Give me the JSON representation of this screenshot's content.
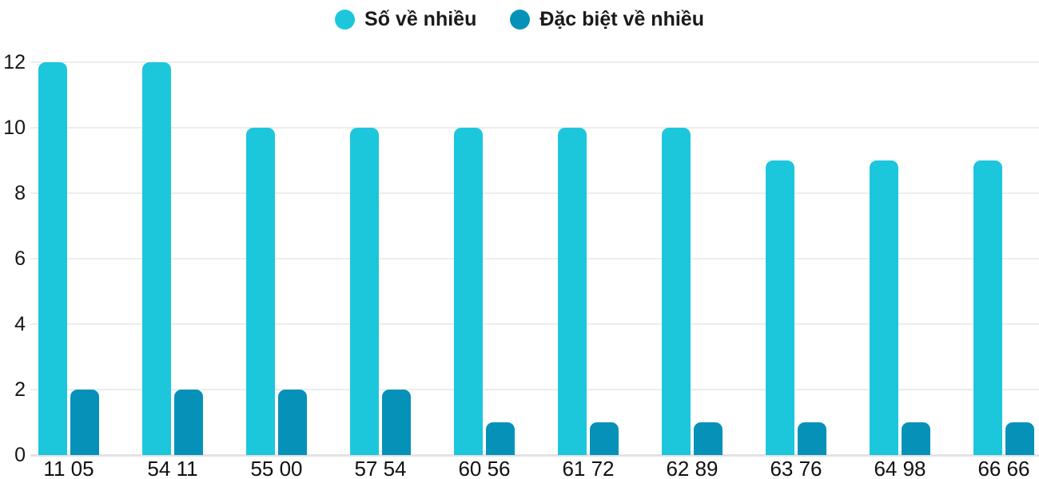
{
  "chart_data": {
    "type": "bar",
    "title": "",
    "categories": [
      "11 05",
      "54 11",
      "55 00",
      "57 54",
      "60 56",
      "61 72",
      "62 89",
      "63 76",
      "64 98",
      "66 66"
    ],
    "series": [
      {
        "name": "Số về nhiều",
        "color": "#1cc7dc",
        "values": [
          12,
          12,
          10,
          10,
          10,
          10,
          10,
          9,
          9,
          9
        ]
      },
      {
        "name": "Đặc biệt về nhiều",
        "color": "#0692b8",
        "values": [
          2,
          2,
          2,
          2,
          1,
          1,
          1,
          1,
          1,
          1
        ]
      }
    ],
    "xlabel": "",
    "ylabel": "",
    "ylim": [
      0,
      12
    ],
    "yticks": [
      0,
      2,
      4,
      6,
      8,
      10,
      12
    ],
    "grid": "horizontal",
    "legend_position": "top-center",
    "background": "#ffffff"
  }
}
